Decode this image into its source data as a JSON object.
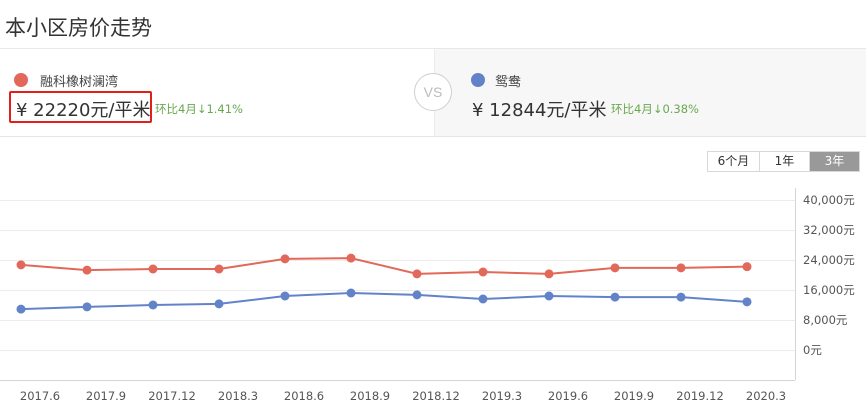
{
  "header": {
    "title": "本小区房价走势"
  },
  "compare": {
    "left": {
      "name": "融科橡树澜湾",
      "price": "¥ 22220元/平米",
      "change": "环比4月↓1.41%",
      "color": "#e2685a",
      "highlighted": true
    },
    "vs_label": "VS",
    "right": {
      "name": "鸳鸯",
      "price": "¥ 12844元/平米",
      "change": "环比4月↓0.38%",
      "color": "#6383c9"
    }
  },
  "range_tabs": [
    {
      "label": "6个月",
      "active": false
    },
    {
      "label": "1年",
      "active": false
    },
    {
      "label": "3年",
      "active": true
    }
  ],
  "chart_data": {
    "type": "line",
    "title": "",
    "xlabel": "",
    "ylabel": "",
    "x": [
      "2017.6",
      "2017.9",
      "2017.12",
      "2018.3",
      "2018.6",
      "2018.9",
      "2018.12",
      "2019.3",
      "2019.6",
      "2019.9",
      "2019.12",
      "2020.3"
    ],
    "series": [
      {
        "name": "融科橡树澜湾",
        "color": "#e2685a",
        "values": [
          22700,
          21300,
          21600,
          21600,
          24300,
          24500,
          20300,
          20800,
          20300,
          21900,
          21900,
          22220
        ]
      },
      {
        "name": "鸳鸯",
        "color": "#6383c9",
        "values": [
          10900,
          11500,
          12000,
          12300,
          14400,
          15200,
          14700,
          13600,
          14400,
          14100,
          14100,
          12844
        ]
      }
    ],
    "y_ticks": [
      "40,000元",
      "32,000元",
      "24,000元",
      "16,000元",
      "8,000元",
      "0元"
    ],
    "ylim": [
      0,
      40000
    ],
    "grid": true,
    "y_axis_position": "right",
    "legend": "none"
  }
}
